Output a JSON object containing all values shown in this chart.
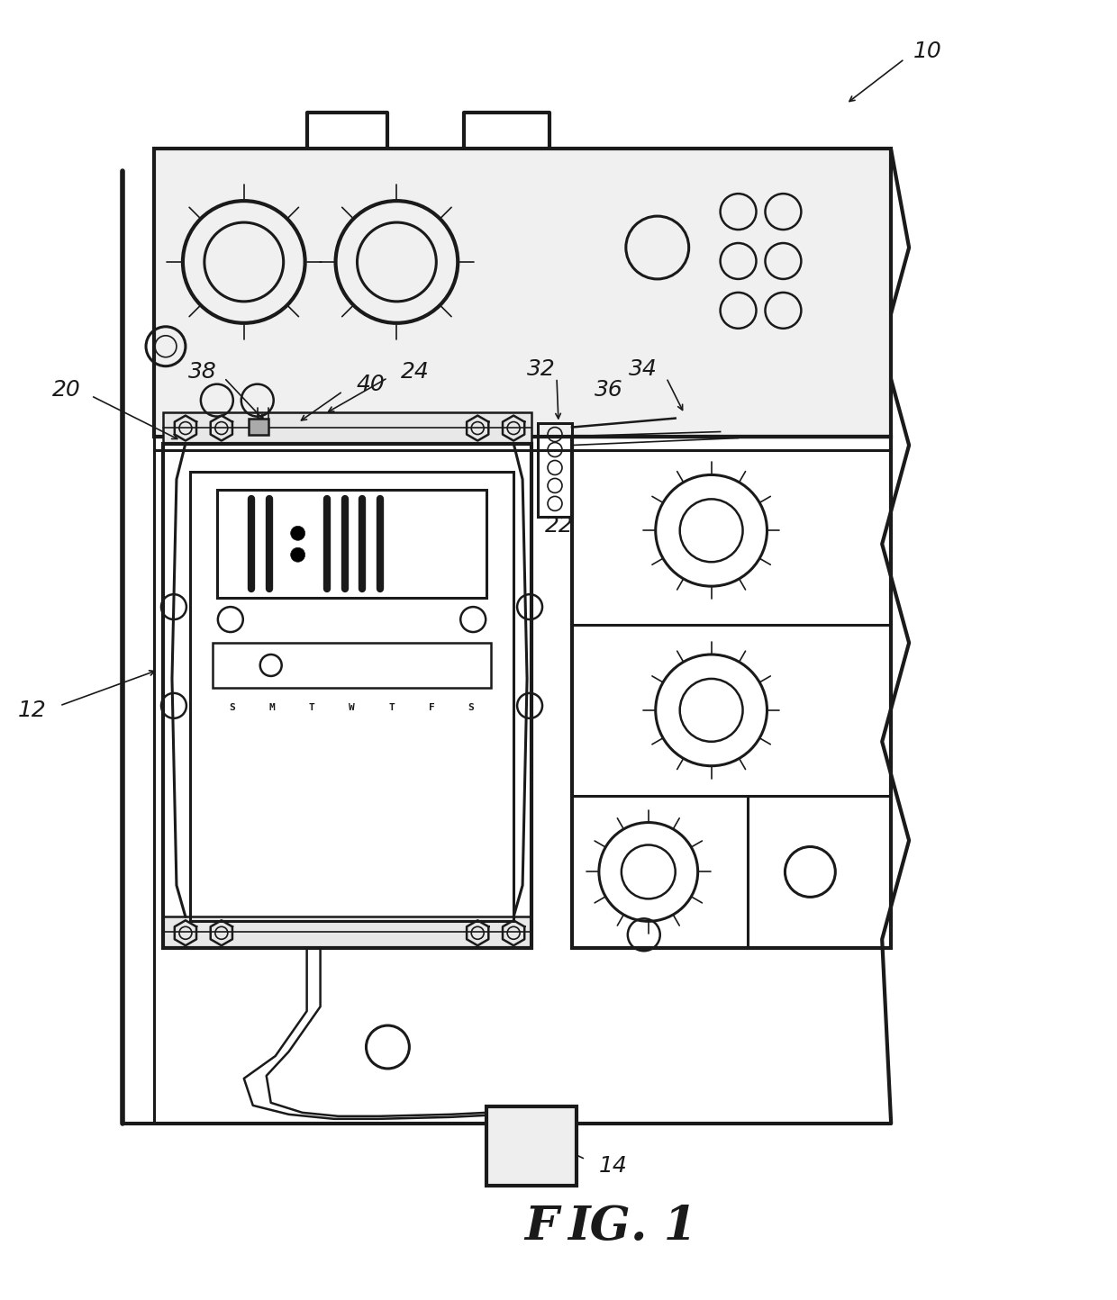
{
  "background_color": "#ffffff",
  "line_color": "#1a1a1a",
  "figure_size": [
    12.4,
    14.44
  ],
  "dpi": 100,
  "fig_caption": "Fig. 1",
  "days": [
    "S",
    "M",
    "T",
    "W",
    "T",
    "F",
    "S"
  ]
}
